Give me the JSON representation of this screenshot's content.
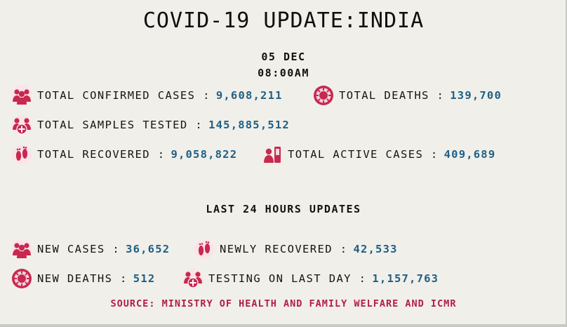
{
  "header": {
    "title": "COVID-19 UPDATE:INDIA",
    "date": "05 DEC",
    "time": "08:00AM"
  },
  "colors": {
    "icon": "#c8294f",
    "value": "#1f5f86",
    "source": "#b21e44"
  },
  "stats": {
    "confirmed": {
      "label": "TOTAL CONFIRMED CASES :",
      "value": "9,608,211",
      "icon": "people-group-icon"
    },
    "deaths": {
      "label": "TOTAL DEATHS :",
      "value": "139,700",
      "icon": "virus-badge-icon"
    },
    "samples": {
      "label": "TOTAL SAMPLES TESTED :",
      "value": "145,885,512",
      "icon": "people-medical-icon"
    },
    "recovered": {
      "label": "TOTAL RECOVERED :",
      "value": "9,058,822",
      "icon": "footprints-icon"
    },
    "active": {
      "label": "TOTAL ACTIVE CASES :",
      "value": "409,689",
      "icon": "patient-icon"
    }
  },
  "last24": {
    "heading": "LAST 24 HOURS UPDATES",
    "new_cases": {
      "label": "NEW CASES :",
      "value": "36,652",
      "icon": "people-group-icon"
    },
    "newly_recovered": {
      "label": "NEWLY RECOVERED :",
      "value": "42,533",
      "icon": "footprints-icon"
    },
    "new_deaths": {
      "label": "NEW DEATHS :",
      "value": "512",
      "icon": "virus-badge-icon"
    },
    "testing": {
      "label": "TESTING ON LAST DAY :",
      "value": "1,157,763",
      "icon": "people-medical-icon"
    }
  },
  "footer": {
    "source": "SOURCE: MINISTRY OF HEALTH AND FAMILY WELFARE AND ICMR"
  }
}
